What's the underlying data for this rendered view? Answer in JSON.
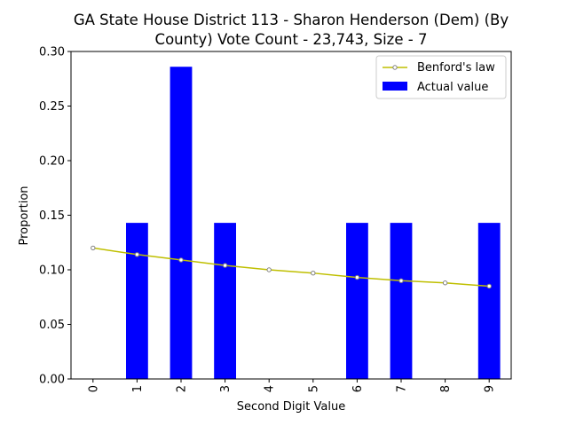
{
  "chart_data": {
    "type": "bar",
    "title_lines": [
      "GA State House District 113 - Sharon Henderson (Dem) (By",
      "County) Vote Count - 23,743, Size - 7"
    ],
    "xlabel": "Second Digit Value",
    "ylabel": "Proportion",
    "categories": [
      "0",
      "1",
      "2",
      "3",
      "4",
      "5",
      "6",
      "7",
      "8",
      "9"
    ],
    "ylim": [
      0,
      0.3
    ],
    "yticks": [
      "0.00",
      "0.05",
      "0.10",
      "0.15",
      "0.20",
      "0.25",
      "0.30"
    ],
    "ytick_values": [
      0,
      0.05,
      0.1,
      0.15,
      0.2,
      0.25,
      0.3
    ],
    "grid": false,
    "legend_position": "top-right",
    "series": [
      {
        "name": "Actual value",
        "type": "bar",
        "color": "#0000ff",
        "values": [
          0,
          0.143,
          0.286,
          0.143,
          0,
          0,
          0.143,
          0.143,
          0,
          0.143
        ]
      },
      {
        "name": "Benford's law",
        "type": "line",
        "color": "#bfbf00",
        "marker_color": "#808080",
        "values": [
          0.12,
          0.114,
          0.109,
          0.104,
          0.1,
          0.097,
          0.093,
          0.09,
          0.088,
          0.085
        ]
      }
    ]
  }
}
